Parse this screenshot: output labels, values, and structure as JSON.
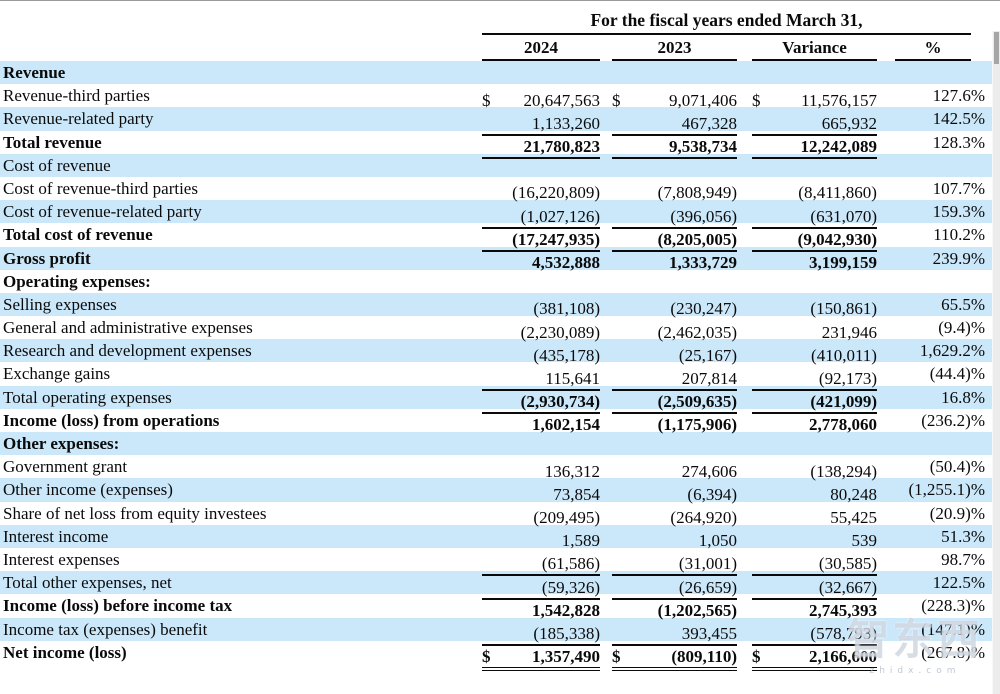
{
  "table": {
    "header": {
      "group_title": "For the fiscal years ended March 31,",
      "columns": [
        "2024",
        "2023",
        "Variance",
        "%"
      ]
    },
    "rows": [
      {
        "label": "Revenue",
        "c2024": "",
        "c2023": "",
        "variance": "",
        "pct": "",
        "bold_label": true,
        "bold_values": false,
        "dollar": false,
        "underline": "none",
        "bg": "blue"
      },
      {
        "label": "Revenue-third parties",
        "c2024": "20,647,563",
        "c2023": "9,071,406",
        "variance": "11,576,157",
        "pct": "127.6%",
        "bold_label": false,
        "bold_values": false,
        "dollar": true,
        "underline": "none",
        "bg": "white"
      },
      {
        "label": "Revenue-related party",
        "c2024": "1,133,260",
        "c2023": "467,328",
        "variance": "665,932",
        "pct": "142.5%",
        "bold_label": false,
        "bold_values": false,
        "dollar": false,
        "underline": "single",
        "bg": "blue"
      },
      {
        "label": "Total revenue",
        "c2024": "21,780,823",
        "c2023": "9,538,734",
        "variance": "12,242,089",
        "pct": "128.3%",
        "bold_label": true,
        "bold_values": true,
        "dollar": false,
        "underline": "single",
        "bg": "white"
      },
      {
        "label": "Cost of revenue",
        "c2024": "",
        "c2023": "",
        "variance": "",
        "pct": "",
        "bold_label": false,
        "bold_values": false,
        "dollar": false,
        "underline": "none",
        "bg": "blue"
      },
      {
        "label": "Cost of revenue-third parties",
        "c2024": "(16,220,809)",
        "c2023": "(7,808,949)",
        "variance": "(8,411,860)",
        "pct": "107.7%",
        "bold_label": false,
        "bold_values": false,
        "dollar": false,
        "underline": "none",
        "bg": "white"
      },
      {
        "label": "Cost of revenue-related party",
        "c2024": "(1,027,126)",
        "c2023": "(396,056)",
        "variance": "(631,070)",
        "pct": "159.3%",
        "bold_label": false,
        "bold_values": false,
        "dollar": false,
        "underline": "single",
        "bg": "blue"
      },
      {
        "label": "Total cost of revenue",
        "c2024": "(17,247,935)",
        "c2023": "(8,205,005)",
        "variance": "(9,042,930)",
        "pct": "110.2%",
        "bold_label": true,
        "bold_values": true,
        "dollar": false,
        "underline": "single",
        "bg": "white"
      },
      {
        "label": "Gross profit",
        "c2024": "4,532,888",
        "c2023": "1,333,729",
        "variance": "3,199,159",
        "pct": "239.9%",
        "bold_label": true,
        "bold_values": true,
        "dollar": false,
        "underline": "none",
        "bg": "blue"
      },
      {
        "label": "Operating expenses:",
        "c2024": "",
        "c2023": "",
        "variance": "",
        "pct": "",
        "bold_label": true,
        "bold_values": false,
        "dollar": false,
        "underline": "none",
        "bg": "white"
      },
      {
        "label": "Selling expenses",
        "c2024": "(381,108)",
        "c2023": "(230,247)",
        "variance": "(150,861)",
        "pct": "65.5%",
        "bold_label": false,
        "bold_values": false,
        "dollar": false,
        "underline": "none",
        "bg": "blue"
      },
      {
        "label": "General and administrative expenses",
        "c2024": "(2,230,089)",
        "c2023": "(2,462,035)",
        "variance": "231,946",
        "pct": "(9.4)%",
        "bold_label": false,
        "bold_values": false,
        "dollar": false,
        "underline": "none",
        "bg": "white"
      },
      {
        "label": "Research and development expenses",
        "c2024": "(435,178)",
        "c2023": "(25,167)",
        "variance": "(410,011)",
        "pct": "1,629.2%",
        "bold_label": false,
        "bold_values": false,
        "dollar": false,
        "underline": "none",
        "bg": "blue"
      },
      {
        "label": "Exchange gains",
        "c2024": "115,641",
        "c2023": "207,814",
        "variance": "(92,173)",
        "pct": "(44.4)%",
        "bold_label": false,
        "bold_values": false,
        "dollar": false,
        "underline": "single",
        "bg": "white"
      },
      {
        "label": "Total operating expenses",
        "c2024": "(2,930,734)",
        "c2023": "(2,509,635)",
        "variance": "(421,099)",
        "pct": "16.8%",
        "bold_label": false,
        "bold_values": true,
        "dollar": false,
        "underline": "single",
        "bg": "blue"
      },
      {
        "label": "Income (loss) from operations",
        "c2024": "1,602,154",
        "c2023": "(1,175,906)",
        "variance": "2,778,060",
        "pct": "(236.2)%",
        "bold_label": true,
        "bold_values": true,
        "dollar": false,
        "underline": "none",
        "bg": "white"
      },
      {
        "label": "Other expenses:",
        "c2024": "",
        "c2023": "",
        "variance": "",
        "pct": "",
        "bold_label": true,
        "bold_values": false,
        "dollar": false,
        "underline": "none",
        "bg": "blue"
      },
      {
        "label": "Government grant",
        "c2024": "136,312",
        "c2023": "274,606",
        "variance": "(138,294)",
        "pct": "(50.4)%",
        "bold_label": false,
        "bold_values": false,
        "dollar": false,
        "underline": "none",
        "bg": "white"
      },
      {
        "label": "Other income (expenses)",
        "c2024": "73,854",
        "c2023": "(6,394)",
        "variance": "80,248",
        "pct": "(1,255.1)%",
        "bold_label": false,
        "bold_values": false,
        "dollar": false,
        "underline": "none",
        "bg": "blue"
      },
      {
        "label": "Share of net loss from equity investees",
        "c2024": "(209,495)",
        "c2023": "(264,920)",
        "variance": "55,425",
        "pct": "(20.9)%",
        "bold_label": false,
        "bold_values": false,
        "dollar": false,
        "underline": "none",
        "bg": "white"
      },
      {
        "label": "Interest income",
        "c2024": "1,589",
        "c2023": "1,050",
        "variance": "539",
        "pct": "51.3%",
        "bold_label": false,
        "bold_values": false,
        "dollar": false,
        "underline": "none",
        "bg": "blue"
      },
      {
        "label": "Interest expenses",
        "c2024": "(61,586)",
        "c2023": "(31,001)",
        "variance": "(30,585)",
        "pct": "98.7%",
        "bold_label": false,
        "bold_values": false,
        "dollar": false,
        "underline": "single",
        "bg": "white"
      },
      {
        "label": "Total other expenses, net",
        "c2024": "(59,326)",
        "c2023": "(26,659)",
        "variance": "(32,667)",
        "pct": "122.5%",
        "bold_label": false,
        "bold_values": false,
        "dollar": false,
        "underline": "single",
        "bg": "blue"
      },
      {
        "label": "Income (loss) before income tax",
        "c2024": "1,542,828",
        "c2023": "(1,202,565)",
        "variance": "2,745,393",
        "pct": "(228.3)%",
        "bold_label": true,
        "bold_values": true,
        "dollar": false,
        "underline": "none",
        "bg": "white"
      },
      {
        "label": "Income tax (expenses) benefit",
        "c2024": "(185,338)",
        "c2023": "393,455",
        "variance": "(578,793)",
        "pct": "(147.1)%",
        "bold_label": false,
        "bold_values": false,
        "dollar": false,
        "underline": "single",
        "bg": "blue"
      },
      {
        "label": "Net income (loss)",
        "c2024": "1,357,490",
        "c2023": "(809,110)",
        "variance": "2,166,600",
        "pct": "(267.8)%",
        "bold_label": true,
        "bold_values": true,
        "dollar": true,
        "underline": "double",
        "bg": "white"
      }
    ],
    "dollar_symbol": "$"
  },
  "watermark": {
    "text": "智东西",
    "subtext": "zhidx.com"
  },
  "colors": {
    "stripe": "#cbe8fb",
    "text": "#0a0a0a",
    "scroll_track": "#ececec",
    "scroll_thumb": "#a6a6a6"
  }
}
